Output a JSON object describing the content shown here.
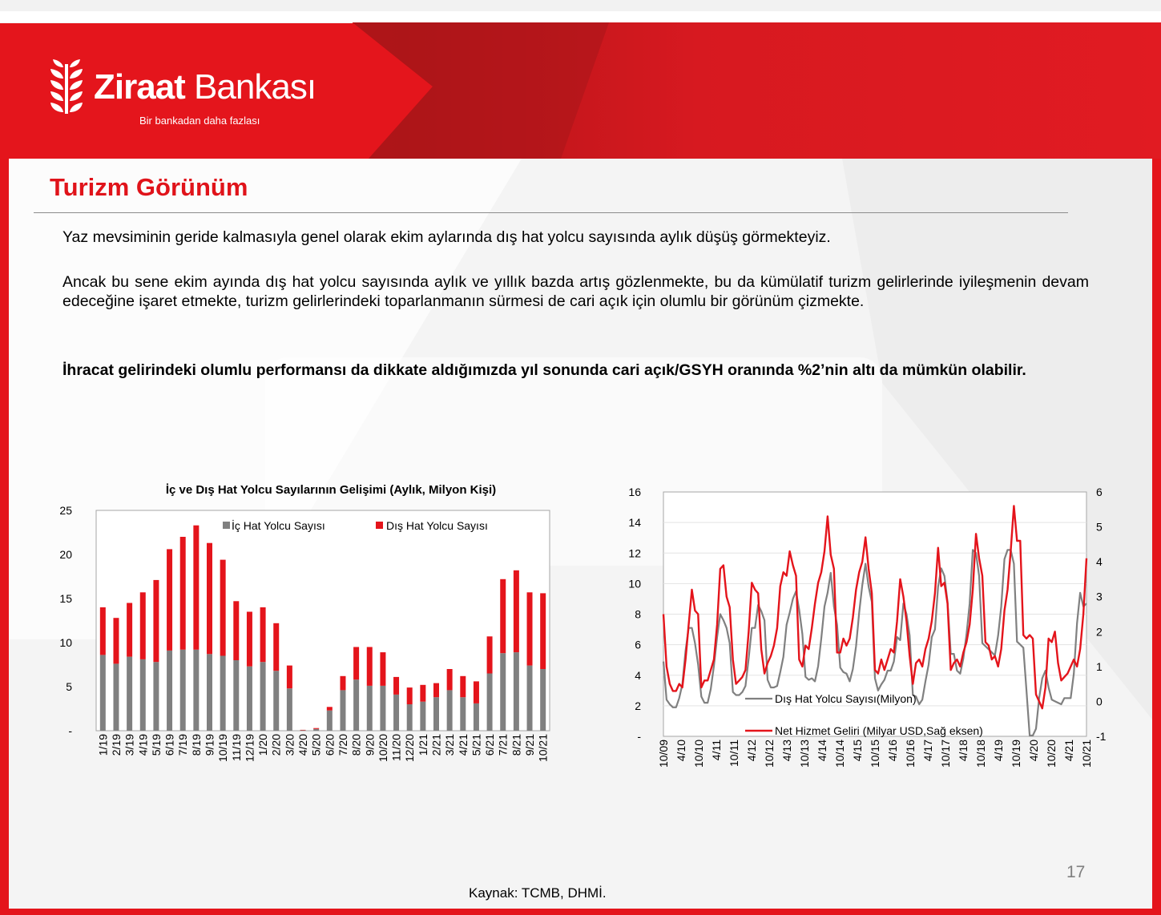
{
  "brand": {
    "name_bold": "Ziraat",
    "name_regular": " Bankası",
    "tagline": "Bir bankadan daha fazlası",
    "colors": {
      "red": "#e4141b",
      "dark_red": "#b41418"
    }
  },
  "page": {
    "title": "Turizm Görünüm",
    "paragraph_1": "Yaz mevsiminin geride kalmasıyla genel olarak ekim aylarında dış hat yolcu sayısında aylık düşüş görmekteyiz.",
    "paragraph_2": "Ancak bu sene ekim ayında dış hat yolcu sayısında aylık ve yıllık bazda artış gözlenmekte, bu da kümülatif turizm gelirlerinde iyileşmenin devam edeceğine işaret etmekte, turizm gelirlerindeki toparlanmanın sürmesi de cari açık için olumlu bir görünüm çizmekte.",
    "paragraph_3": "İhracat gelirindeki olumlu performansı da dikkate aldığımızda yıl sonunda cari açık/GSYH oranında %2’nin altı da mümkün olabilir.",
    "page_number": "17",
    "source": "Kaynak: TCMB, DHMİ."
  },
  "chart_data": [
    {
      "type": "bar",
      "stacked": true,
      "title": "İç ve Dış Hat Yolcu Sayılarının Gelişimi (Aylık, Milyon Kişi)",
      "categories": [
        "1/19",
        "2/19",
        "3/19",
        "4/19",
        "5/19",
        "6/19",
        "7/19",
        "8/19",
        "9/19",
        "10/19",
        "11/19",
        "12/19",
        "1/20",
        "2/20",
        "3/20",
        "4/20",
        "5/20",
        "6/20",
        "7/20",
        "8/20",
        "9/20",
        "10/20",
        "11/20",
        "12/20",
        "1/21",
        "2/21",
        "3/21",
        "4/21",
        "5/21",
        "6/21",
        "7/21",
        "8/21",
        "9/21",
        "10/21"
      ],
      "series": [
        {
          "name": "İç Hat Yolcu Sayısı",
          "color": "#808080",
          "values": [
            8.6,
            7.6,
            8.4,
            8.1,
            7.8,
            9.1,
            9.2,
            9.2,
            8.7,
            8.5,
            8.0,
            7.3,
            7.8,
            6.8,
            4.8,
            0.05,
            0.2,
            2.3,
            4.6,
            5.8,
            5.1,
            5.1,
            4.1,
            3.0,
            3.3,
            3.8,
            4.6,
            3.8,
            3.1,
            6.5,
            8.8,
            8.9,
            7.4,
            7.0
          ]
        },
        {
          "name": "Dış Hat Yolcu Sayısı",
          "color": "#e4141b",
          "values": [
            5.4,
            5.2,
            6.1,
            7.6,
            9.3,
            11.5,
            12.8,
            14.1,
            12.6,
            10.9,
            6.7,
            6.2,
            6.2,
            5.4,
            2.6,
            0.05,
            0.1,
            0.4,
            1.6,
            3.7,
            4.4,
            3.8,
            2.0,
            1.9,
            1.9,
            1.6,
            2.4,
            2.4,
            2.5,
            4.2,
            8.4,
            9.3,
            8.3,
            8.6
          ]
        }
      ],
      "y_ticks": [
        "-",
        "5",
        "10",
        "15",
        "20",
        "25"
      ],
      "ylim": [
        0,
        25
      ],
      "legend": "top-right",
      "grid": false
    },
    {
      "type": "line",
      "dual_axis": true,
      "x_ticks": [
        "10/09",
        "4/10",
        "10/10",
        "4/11",
        "10/11",
        "4/12",
        "10/12",
        "4/13",
        "10/13",
        "4/14",
        "10/14",
        "4/15",
        "10/15",
        "4/16",
        "10/16",
        "4/17",
        "10/17",
        "4/18",
        "10/18",
        "4/19",
        "10/19",
        "4/20",
        "10/20",
        "4/21",
        "10/21"
      ],
      "x_start": "10/09",
      "x_end": "10/21",
      "left_ticks": [
        "-",
        "2",
        "4",
        "6",
        "8",
        "10",
        "12",
        "14",
        "16"
      ],
      "right_ticks": [
        "-1",
        "0",
        "1",
        "2",
        "3",
        "4",
        "5",
        "6"
      ],
      "left_ylim": [
        0,
        16
      ],
      "right_ylim": [
        -1,
        6
      ],
      "grid": true,
      "series": [
        {
          "name": "Dış Hat Yolcu Sayısı(Milyon)",
          "axis": "left",
          "color": "#808080",
          "values": [
            4.9,
            2.4,
            2.1,
            1.9,
            1.9,
            2.5,
            3.4,
            5.6,
            7.1,
            7.1,
            6.1,
            4.7,
            2.6,
            2.2,
            2.2,
            3.1,
            4.6,
            6.5,
            8.0,
            7.6,
            7.1,
            6.1,
            2.9,
            2.7,
            2.7,
            2.9,
            3.3,
            5.1,
            7.1,
            7.1,
            8.6,
            8.2,
            7.6,
            3.7,
            3.2,
            3.2,
            3.3,
            4.2,
            5.2,
            7.3,
            8.1,
            9.0,
            9.5,
            8.3,
            6.7,
            3.9,
            3.7,
            3.8,
            3.6,
            4.6,
            6.4,
            8.5,
            9.4,
            10.7,
            8.5,
            7.3,
            4.5,
            4.2,
            4.1,
            3.6,
            4.4,
            5.9,
            8.1,
            9.9,
            11.3,
            9.8,
            8.8,
            3.8,
            3.0,
            3.4,
            3.7,
            4.3,
            4.3,
            4.9,
            6.5,
            6.3,
            8.7,
            8.0,
            6.6,
            2.7,
            2.6,
            2.1,
            2.4,
            3.6,
            4.7,
            6.5,
            7.0,
            9.8,
            11.0,
            10.5,
            8.8,
            5.4,
            5.4,
            4.3,
            4.1,
            5.1,
            6.7,
            8.7,
            12.2,
            12.0,
            10.5,
            6.1,
            5.9,
            5.7,
            5.5,
            5.3,
            6.6,
            8.5,
            11.6,
            12.2,
            12.2,
            11.3,
            6.2,
            6.0,
            5.8,
            3.0,
            0.05,
            0.05,
            0.5,
            2.5,
            3.8,
            4.3,
            3.2,
            2.4,
            2.3,
            2.2,
            2.1,
            2.5,
            2.5,
            2.5,
            4.1,
            7.4,
            9.4,
            8.5,
            8.7
          ]
        },
        {
          "name": "Net Hizmet Geliri (Milyar USD,Sağ eksen)",
          "axis": "right",
          "color": "#e4141b",
          "values": [
            2.5,
            1.0,
            0.5,
            0.3,
            0.3,
            0.5,
            0.4,
            1.2,
            2.2,
            3.2,
            2.6,
            2.5,
            0.4,
            0.6,
            0.6,
            0.9,
            1.2,
            2.2,
            3.8,
            3.9,
            3.0,
            2.7,
            1.2,
            0.5,
            0.6,
            0.7,
            0.9,
            2.0,
            3.4,
            3.2,
            3.1,
            1.5,
            0.8,
            1.1,
            1.3,
            1.6,
            2.1,
            3.3,
            3.7,
            3.6,
            4.3,
            3.9,
            3.6,
            1.2,
            1.0,
            1.6,
            1.5,
            2.1,
            2.8,
            3.4,
            3.7,
            4.3,
            5.3,
            4.2,
            3.8,
            1.4,
            1.4,
            1.8,
            1.6,
            1.8,
            2.4,
            3.2,
            3.7,
            4.0,
            4.7,
            3.8,
            3.1,
            0.9,
            0.8,
            1.2,
            0.9,
            1.2,
            1.5,
            1.4,
            2.3,
            3.5,
            3.0,
            2.3,
            1.3,
            0.5,
            1.1,
            1.2,
            1.0,
            1.5,
            1.8,
            2.3,
            3.1,
            4.4,
            3.3,
            3.4,
            2.8,
            0.9,
            1.1,
            1.2,
            1.0,
            1.4,
            1.7,
            2.2,
            3.2,
            4.8,
            4.1,
            3.6,
            1.7,
            1.6,
            1.2,
            1.3,
            1.0,
            1.5,
            2.6,
            3.2,
            4.3,
            5.6,
            4.6,
            4.6,
            1.9,
            1.8,
            1.9,
            1.8,
            0.2,
            0.0,
            -0.2,
            0.4,
            1.8,
            1.7,
            2.0,
            1.1,
            0.6,
            0.7,
            0.8,
            1.0,
            1.2,
            1.0,
            1.5,
            2.5,
            4.1
          ]
        }
      ]
    }
  ]
}
